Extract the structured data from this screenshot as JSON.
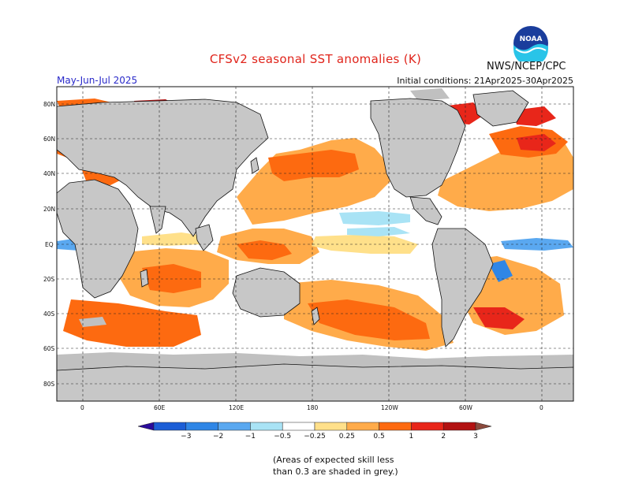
{
  "title": "CFSv2 seasonal SST anomalies (K)",
  "agency": "NWS/NCEP/CPC",
  "logo_text": "NOAA",
  "season": "May-Jun-Jul 2025",
  "initial_conditions": "Initial conditions: 21Apr2025-30Apr2025",
  "latitude_labels": [
    "80N",
    "60N",
    "40N",
    "20N",
    "EQ",
    "20S",
    "40S",
    "60S",
    "80S"
  ],
  "longitude_labels": [
    "0",
    "60E",
    "120E",
    "180",
    "120W",
    "60W",
    "0"
  ],
  "colorbar": {
    "labels": [
      "-3",
      "-2",
      "-1",
      "-0.5",
      "-0.25",
      "0.25",
      "0.5",
      "1",
      "2",
      "3"
    ],
    "colors": [
      "#2a0c9b",
      "#1c5ed6",
      "#2f86e6",
      "#5aa8f0",
      "#a9e3f5",
      "#ffffff",
      "#ffe08a",
      "#ffab4a",
      "#fd6a10",
      "#e8261a",
      "#b21212",
      "#8b4a3d"
    ]
  },
  "skill_note_line1": "(Areas of expected skill less",
  "skill_note_line2": "than 0.3 are shaded in grey.)"
}
